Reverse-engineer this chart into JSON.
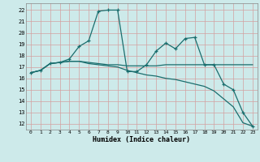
{
  "xlabel": "Humidex (Indice chaleur)",
  "ylabel": "",
  "bg_color": "#cdeaea",
  "grid_color": "#d4a0a0",
  "line_color": "#1a6e6e",
  "xlim": [
    -0.5,
    23.5
  ],
  "ylim": [
    11.5,
    22.6
  ],
  "xticks": [
    0,
    1,
    2,
    3,
    4,
    5,
    6,
    7,
    8,
    9,
    10,
    11,
    12,
    13,
    14,
    15,
    16,
    17,
    18,
    19,
    20,
    21,
    22,
    23
  ],
  "yticks": [
    12,
    13,
    14,
    15,
    16,
    17,
    18,
    19,
    20,
    21,
    22
  ],
  "line1_x": [
    0,
    1,
    2,
    3,
    4,
    5,
    6,
    7,
    8,
    9,
    10,
    11,
    12,
    13,
    14,
    15,
    16,
    17,
    18,
    19,
    20,
    21,
    22,
    23
  ],
  "line1_y": [
    16.5,
    16.7,
    17.3,
    17.4,
    17.5,
    17.5,
    17.4,
    17.3,
    17.2,
    17.2,
    17.1,
    17.1,
    17.1,
    17.1,
    17.2,
    17.2,
    17.2,
    17.2,
    17.2,
    17.2,
    17.2,
    17.2,
    17.2,
    17.2
  ],
  "line2_x": [
    0,
    1,
    2,
    3,
    4,
    5,
    6,
    7,
    8,
    9,
    10,
    11,
    12,
    13,
    14,
    15,
    16,
    17,
    18,
    19,
    20,
    21,
    22,
    23
  ],
  "line2_y": [
    16.5,
    16.7,
    17.3,
    17.4,
    17.7,
    18.8,
    19.3,
    21.9,
    22.0,
    22.0,
    16.6,
    16.6,
    17.2,
    18.4,
    19.1,
    18.6,
    19.5,
    19.6,
    17.2,
    17.2,
    15.5,
    15.0,
    13.0,
    11.8
  ],
  "line3_x": [
    0,
    1,
    2,
    3,
    4,
    5,
    6,
    7,
    8,
    9,
    10,
    11,
    12,
    13,
    14,
    15,
    16,
    17,
    18,
    19,
    20,
    21,
    22,
    23
  ],
  "line3_y": [
    16.5,
    16.7,
    17.3,
    17.4,
    17.5,
    17.5,
    17.3,
    17.2,
    17.1,
    17.0,
    16.7,
    16.5,
    16.3,
    16.2,
    16.0,
    15.9,
    15.7,
    15.5,
    15.3,
    14.9,
    14.2,
    13.5,
    12.1,
    11.8
  ]
}
